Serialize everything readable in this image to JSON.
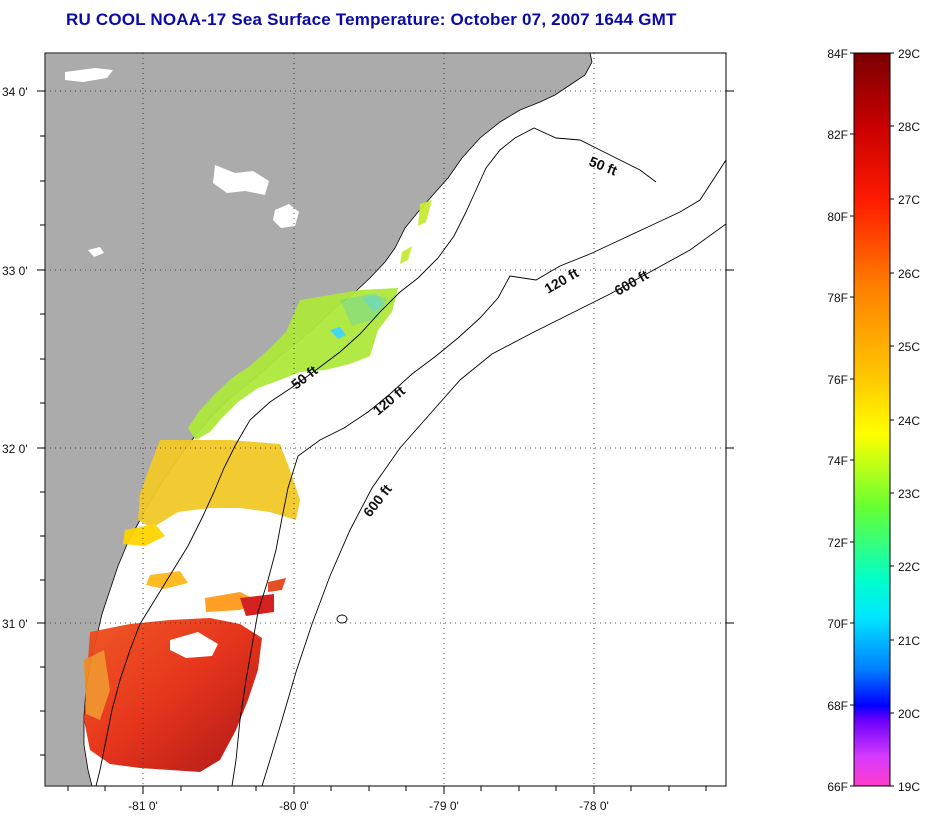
{
  "title": "RU COOL  NOAA-17  Sea Surface Temperature:  October 07, 2007 1644 GMT",
  "axes": {
    "lat_labels": [
      "34 0'",
      "33 0'",
      "32 0'",
      "31 0'"
    ],
    "lon_labels": [
      "-81 0'",
      "-80 0'",
      "-79 0'",
      "-78 0'"
    ]
  },
  "contours": [
    {
      "label": "50 ft"
    },
    {
      "label": "50 ft"
    },
    {
      "label": "120 ft"
    },
    {
      "label": "120 ft"
    },
    {
      "label": "600 ft"
    },
    {
      "label": "600 ft"
    }
  ],
  "colorbar": {
    "fahrenheit_labels": [
      "84F",
      "82F",
      "80F",
      "78F",
      "76F",
      "74F",
      "72F",
      "70F",
      "68F",
      "66F"
    ],
    "celsius_labels": [
      "29C",
      "28C",
      "27C",
      "26C",
      "25C",
      "24C",
      "23C",
      "22C",
      "21C",
      "20C",
      "19C"
    ],
    "range_f": [
      66,
      84
    ],
    "range_c": [
      19,
      29
    ]
  },
  "colors": {
    "land": "#ababab",
    "title": "#0a0aa8"
  }
}
